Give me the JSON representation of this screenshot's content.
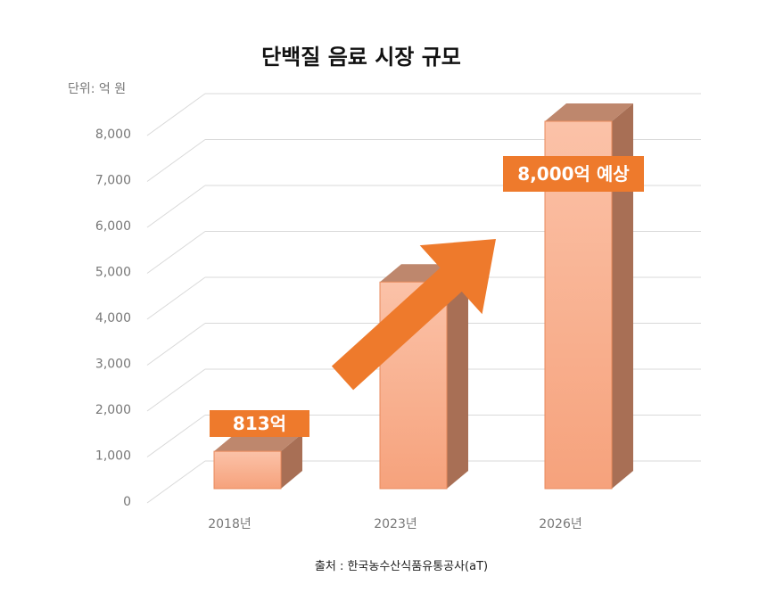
{
  "chart_data": {
    "type": "bar",
    "title": "단백질 음료 시장 규모",
    "unit_label": "단위: 억 원",
    "categories": [
      "2018년",
      "2023년",
      "2026년"
    ],
    "values": [
      813,
      4500,
      8000
    ],
    "ylim": [
      0,
      8000
    ],
    "yticks": [
      0,
      1000,
      2000,
      3000,
      4000,
      5000,
      6000,
      7000,
      8000
    ],
    "ytick_labels": [
      "0",
      "1,000",
      "2,000",
      "3,000",
      "4,000",
      "5,000",
      "6,000",
      "7,000",
      "8,000"
    ],
    "grid": true,
    "style": "3d-column",
    "annotations": [
      {
        "category": "2018년",
        "text": "813억"
      },
      {
        "category": "2026년",
        "text": "8,000억 예상"
      }
    ],
    "trend_arrow": true,
    "source": "출처 : 한국농수산식품유통공사(aT)"
  },
  "colors": {
    "bar_front_top": "#fbc2a8",
    "bar_front_bottom": "#f6a27c",
    "bar_side": "#a86f55",
    "bar_top": "#be876d",
    "bar_edge": "#e88a5c",
    "callout": "#ee7a2c",
    "arrow": "#ee7a2c",
    "grid": "#d9d9d9"
  }
}
